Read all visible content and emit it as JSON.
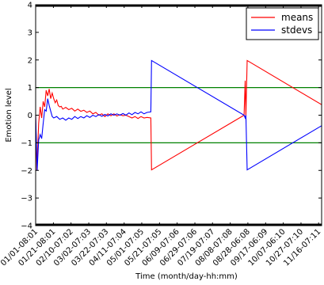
{
  "chart_data": {
    "type": "line",
    "xlabel": "Time (month/day-hh:mm)",
    "ylabel": "Emotion level",
    "ylim": [
      -4,
      4
    ],
    "yticks": [
      -4,
      -3,
      -2,
      -1,
      0,
      1,
      2,
      3,
      4
    ],
    "xlim": [
      0,
      19
    ],
    "xtick_labels": [
      "01/01-08:01",
      "01/21-08:01",
      "02/10-07:02",
      "03/02-07:03",
      "03/22-07:03",
      "04/11-07:04",
      "05/01-07:05",
      "05/21-07:05",
      "06/09-07:06",
      "06/29-07:06",
      "07/19-07:07",
      "08/08-07:08",
      "08/28-06:08",
      "09/17-06:09",
      "10/07-06:10",
      "10/27-07:10",
      "11/16-07:11"
    ],
    "xtick_positions": [
      0,
      1.18,
      2.35,
      3.53,
      4.7,
      5.88,
      7.05,
      8.23,
      9.4,
      10.58,
      11.75,
      12.93,
      14.1,
      15.28,
      16.45,
      17.63,
      18.8
    ],
    "reference_lines": [
      {
        "y": 1,
        "color": "#008000"
      },
      {
        "y": -1,
        "color": "#008000"
      }
    ],
    "legend": {
      "position": "top-right"
    },
    "series": [
      {
        "name": "means",
        "color": "#ff0000",
        "points": [
          [
            0,
            0
          ],
          [
            0.08,
            -2
          ],
          [
            0.2,
            -0.3
          ],
          [
            0.3,
            0.3
          ],
          [
            0.4,
            -0.1
          ],
          [
            0.5,
            0.5
          ],
          [
            0.6,
            0.3
          ],
          [
            0.7,
            0.9
          ],
          [
            0.8,
            0.7
          ],
          [
            0.9,
            0.95
          ],
          [
            1.0,
            0.6
          ],
          [
            1.1,
            0.8
          ],
          [
            1.2,
            0.6
          ],
          [
            1.3,
            0.45
          ],
          [
            1.4,
            0.55
          ],
          [
            1.5,
            0.35
          ],
          [
            1.6,
            0.3
          ],
          [
            1.7,
            0.32
          ],
          [
            1.8,
            0.22
          ],
          [
            2.0,
            0.28
          ],
          [
            2.2,
            0.2
          ],
          [
            2.4,
            0.25
          ],
          [
            2.6,
            0.15
          ],
          [
            2.8,
            0.22
          ],
          [
            3.0,
            0.14
          ],
          [
            3.2,
            0.18
          ],
          [
            3.4,
            0.1
          ],
          [
            3.6,
            0.15
          ],
          [
            3.8,
            0.05
          ],
          [
            4.0,
            0.1
          ],
          [
            4.2,
            0.0
          ],
          [
            4.4,
            0.05
          ],
          [
            4.6,
            -0.05
          ],
          [
            4.8,
            0.05
          ],
          [
            5.0,
            -0.02
          ],
          [
            5.2,
            0.05
          ],
          [
            5.4,
            -0.03
          ],
          [
            5.6,
            0.02
          ],
          [
            5.8,
            -0.02
          ],
          [
            6.0,
            0.0
          ],
          [
            6.2,
            -0.05
          ],
          [
            6.4,
            -0.1
          ],
          [
            6.6,
            -0.05
          ],
          [
            6.8,
            -0.12
          ],
          [
            7.0,
            -0.05
          ],
          [
            7.2,
            -0.1
          ],
          [
            7.4,
            -0.08
          ],
          [
            7.65,
            -0.1
          ],
          [
            7.7,
            -1.98
          ],
          [
            13.85,
            0.0
          ],
          [
            13.92,
            1.25
          ],
          [
            13.97,
            -0.05
          ],
          [
            14.05,
            1.98
          ],
          [
            19,
            0.38
          ]
        ]
      },
      {
        "name": "stdevs",
        "color": "#0000ff",
        "points": [
          [
            0,
            0
          ],
          [
            0.1,
            -2
          ],
          [
            0.2,
            -0.9
          ],
          [
            0.3,
            -0.7
          ],
          [
            0.4,
            -0.85
          ],
          [
            0.5,
            -0.3
          ],
          [
            0.6,
            0.2
          ],
          [
            0.7,
            0.15
          ],
          [
            0.8,
            0.6
          ],
          [
            0.9,
            0.35
          ],
          [
            1.0,
            0.15
          ],
          [
            1.1,
            -0.05
          ],
          [
            1.2,
            -0.1
          ],
          [
            1.4,
            -0.05
          ],
          [
            1.6,
            -0.15
          ],
          [
            1.8,
            -0.1
          ],
          [
            2.0,
            -0.18
          ],
          [
            2.2,
            -0.1
          ],
          [
            2.4,
            -0.15
          ],
          [
            2.6,
            -0.05
          ],
          [
            2.8,
            -0.12
          ],
          [
            3.0,
            -0.05
          ],
          [
            3.2,
            -0.1
          ],
          [
            3.4,
            -0.02
          ],
          [
            3.6,
            -0.08
          ],
          [
            3.8,
            0.0
          ],
          [
            4.0,
            -0.05
          ],
          [
            4.2,
            0.02
          ],
          [
            4.4,
            -0.04
          ],
          [
            4.6,
            0.03
          ],
          [
            4.8,
            -0.03
          ],
          [
            5.0,
            0.05
          ],
          [
            5.2,
            0.0
          ],
          [
            5.4,
            0.05
          ],
          [
            5.6,
            0.0
          ],
          [
            5.8,
            0.06
          ],
          [
            6.0,
            0.0
          ],
          [
            6.2,
            0.08
          ],
          [
            6.4,
            0.02
          ],
          [
            6.6,
            0.1
          ],
          [
            6.8,
            0.05
          ],
          [
            7.0,
            0.12
          ],
          [
            7.2,
            0.05
          ],
          [
            7.4,
            0.1
          ],
          [
            7.65,
            0.12
          ],
          [
            7.7,
            1.98
          ],
          [
            13.85,
            0.0
          ],
          [
            13.92,
            -0.1
          ],
          [
            13.97,
            0.0
          ],
          [
            14.05,
            -1.98
          ],
          [
            19,
            -0.38
          ]
        ]
      }
    ]
  }
}
